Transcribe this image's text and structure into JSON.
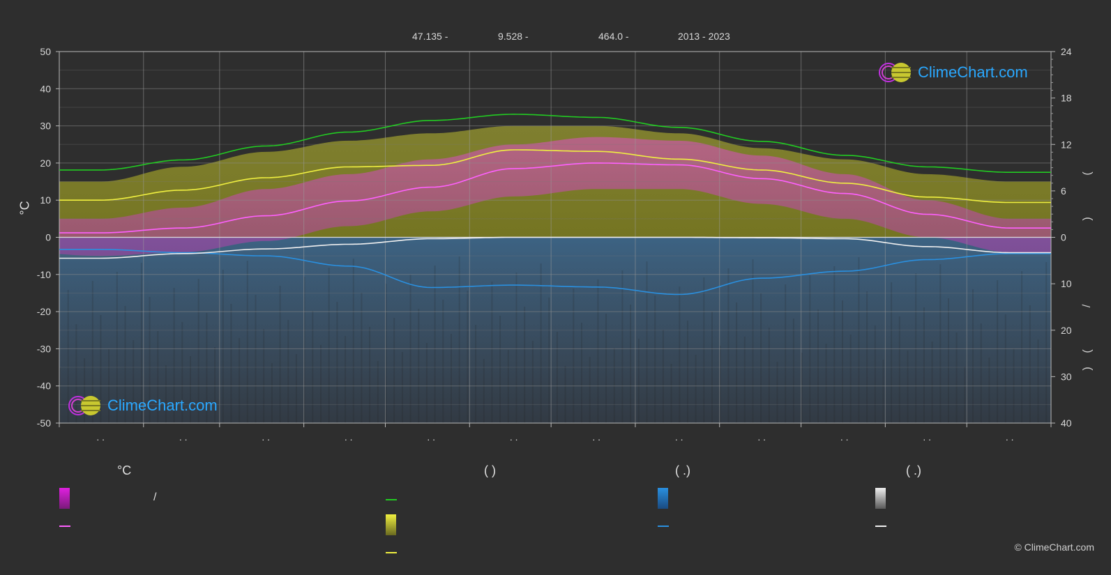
{
  "header": {
    "lat": "47.135 -",
    "lon": "9.528 -",
    "elev": "464.0 -",
    "years": "2013 - 2023"
  },
  "axes": {
    "left_label": "°C",
    "right_labels": [
      "(",
      ")",
      "(",
      ")",
      "/",
      "(",
      ".",
      ")"
    ]
  },
  "legend": {
    "col1_title": "°C",
    "col1_mid": "/",
    "col2_title": "(          )",
    "col3_title": "(   .)",
    "col4_title": "(   .)"
  },
  "colors": {
    "background": "#2e2e2e",
    "temp_band": "#e040d0",
    "mean_temp": "#ff60ff",
    "daylight": "#22cc22",
    "sunshine_band": "#c8c830",
    "sunshine_line": "#f0f040",
    "rain_band": "#2a7fc0",
    "rain_line": "#2a90e0",
    "snow_band": "#bbbbbb",
    "snow_line": "#f0f0f0"
  },
  "logo_text": "ClimeChart.com",
  "copyright": "© ClimeChart.com",
  "chart_data": {
    "type": "line",
    "x_months": [
      1,
      2,
      3,
      4,
      5,
      6,
      7,
      8,
      9,
      10,
      11,
      12
    ],
    "month_tick_labels": [
      ". .",
      ". .",
      ". .",
      ". .",
      ". .",
      ". .",
      ". .",
      ". .",
      ". .",
      ". .",
      ". .",
      ". ."
    ],
    "y_left": {
      "range": [
        -50,
        50
      ],
      "ticks": [
        50,
        40,
        30,
        20,
        10,
        0,
        -10,
        -20,
        -30,
        -40,
        -50
      ]
    },
    "y_right_top": {
      "range": [
        0,
        24
      ],
      "ticks": [
        24,
        18,
        12,
        6,
        0
      ]
    },
    "y_right_bottom": {
      "range": [
        0,
        40
      ],
      "ticks": [
        0,
        10,
        20,
        30,
        40
      ]
    },
    "series": [
      {
        "key": "daylight",
        "axis": "right_top",
        "color": "#22cc22",
        "values": [
          8.7,
          10.0,
          11.8,
          13.6,
          15.1,
          15.9,
          15.5,
          14.2,
          12.4,
          10.6,
          9.1,
          8.4
        ]
      },
      {
        "key": "sunshine",
        "axis": "right_top",
        "color": "#f0f040",
        "values": [
          4.8,
          6.1,
          7.7,
          9.1,
          9.3,
          11.3,
          11.1,
          10.1,
          8.7,
          7.0,
          5.2,
          4.5
        ]
      },
      {
        "key": "mean_temp",
        "axis": "left",
        "color": "#ff60ff",
        "values": [
          1.2,
          2.5,
          5.8,
          9.8,
          13.5,
          18.5,
          20.0,
          19.5,
          15.8,
          11.8,
          6.2,
          2.5
        ]
      },
      {
        "key": "rain",
        "axis": "right_bottom",
        "color": "#2a90e0",
        "values": [
          2.6,
          3.3,
          4.0,
          6.2,
          10.8,
          10.3,
          10.7,
          12.3,
          8.8,
          7.3,
          4.8,
          3.5
        ]
      },
      {
        "key": "snow",
        "axis": "right_bottom",
        "color": "#f0f0f0",
        "values": [
          4.5,
          3.5,
          2.5,
          1.5,
          0.3,
          0.0,
          0.0,
          0.0,
          0.1,
          0.3,
          2.0,
          3.3
        ]
      }
    ],
    "bands": {
      "sunshine_top_temp": [
        15,
        19,
        23,
        26,
        28,
        30,
        30,
        28,
        24,
        21,
        17,
        15
      ],
      "temp_max": [
        5,
        8,
        13,
        17,
        21,
        25,
        27,
        26,
        22,
        17,
        10,
        5
      ],
      "temp_min": [
        -5,
        -4,
        -1,
        3,
        7,
        11,
        13,
        13,
        9,
        5,
        0,
        -4
      ]
    }
  }
}
